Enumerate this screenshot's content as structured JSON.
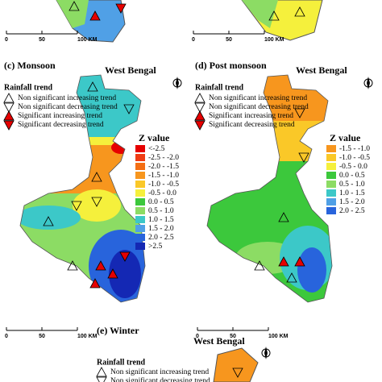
{
  "top_scales": [
    {
      "labels": [
        "0",
        "50",
        "100 KM"
      ]
    },
    {
      "labels": [
        "0",
        "50",
        "100 KM"
      ]
    }
  ],
  "panels": [
    {
      "title": "(c) Monsoon",
      "region": "West Bengal",
      "legend_title": "Rainfall trend",
      "trend_items": [
        "Non significant increasing trend",
        "Non significant decreasing trend",
        "Significant increasing trend",
        "Significant decreasing trend"
      ],
      "z_title": "Z value",
      "z_classes": [
        "<-2.5",
        "-2.5 - -2.0",
        "-2.0 - -1.5",
        "-1.5 - -1.0",
        "-1.0 - -0.5",
        "-0.5 - 0.0",
        "0.0 - 0.5",
        "0.5 - 1.0",
        "1.0 - 1.5",
        "1.5 - 2.0",
        "2.0 - 2.5",
        ">2.5"
      ],
      "z_colors": [
        "#e60000",
        "#f03c14",
        "#f46e14",
        "#f7961e",
        "#fac828",
        "#f5f03c",
        "#3cc83c",
        "#8cdc64",
        "#3cc8c8",
        "#50a0e6",
        "#2864dc",
        "#1428b4"
      ],
      "scale": [
        "0",
        "50",
        "100 KM"
      ]
    },
    {
      "title": "(d) Post monsoon",
      "region": "West Bengal",
      "legend_title": "Rainfall trend",
      "trend_items": [
        "Non significant increasing trend",
        "Non significant decreasing trend",
        "Significant increasing trend",
        "Significant decreasing trend"
      ],
      "z_title": "Z value",
      "z_classes": [
        "-1.5 - -1.0",
        "-1.0 - -0.5",
        "-0.5 - 0.0",
        "0.0 - 0.5",
        "0.5 - 1.0",
        "1.0 - 1.5",
        "1.5 - 2.0",
        "2.0 - 2.5"
      ],
      "z_colors": [
        "#f7961e",
        "#fac828",
        "#f5f03c",
        "#3cc83c",
        "#8cdc64",
        "#3cc8c8",
        "#50a0e6",
        "#2864dc"
      ],
      "scale": [
        "0",
        "50",
        "100 KM"
      ]
    },
    {
      "title": "(e) Winter",
      "region": "West Bengal",
      "legend_title": "Rainfall trend",
      "trend_items": [
        "Non significant increasing trend",
        "Non significant decreasing trend"
      ]
    }
  ]
}
